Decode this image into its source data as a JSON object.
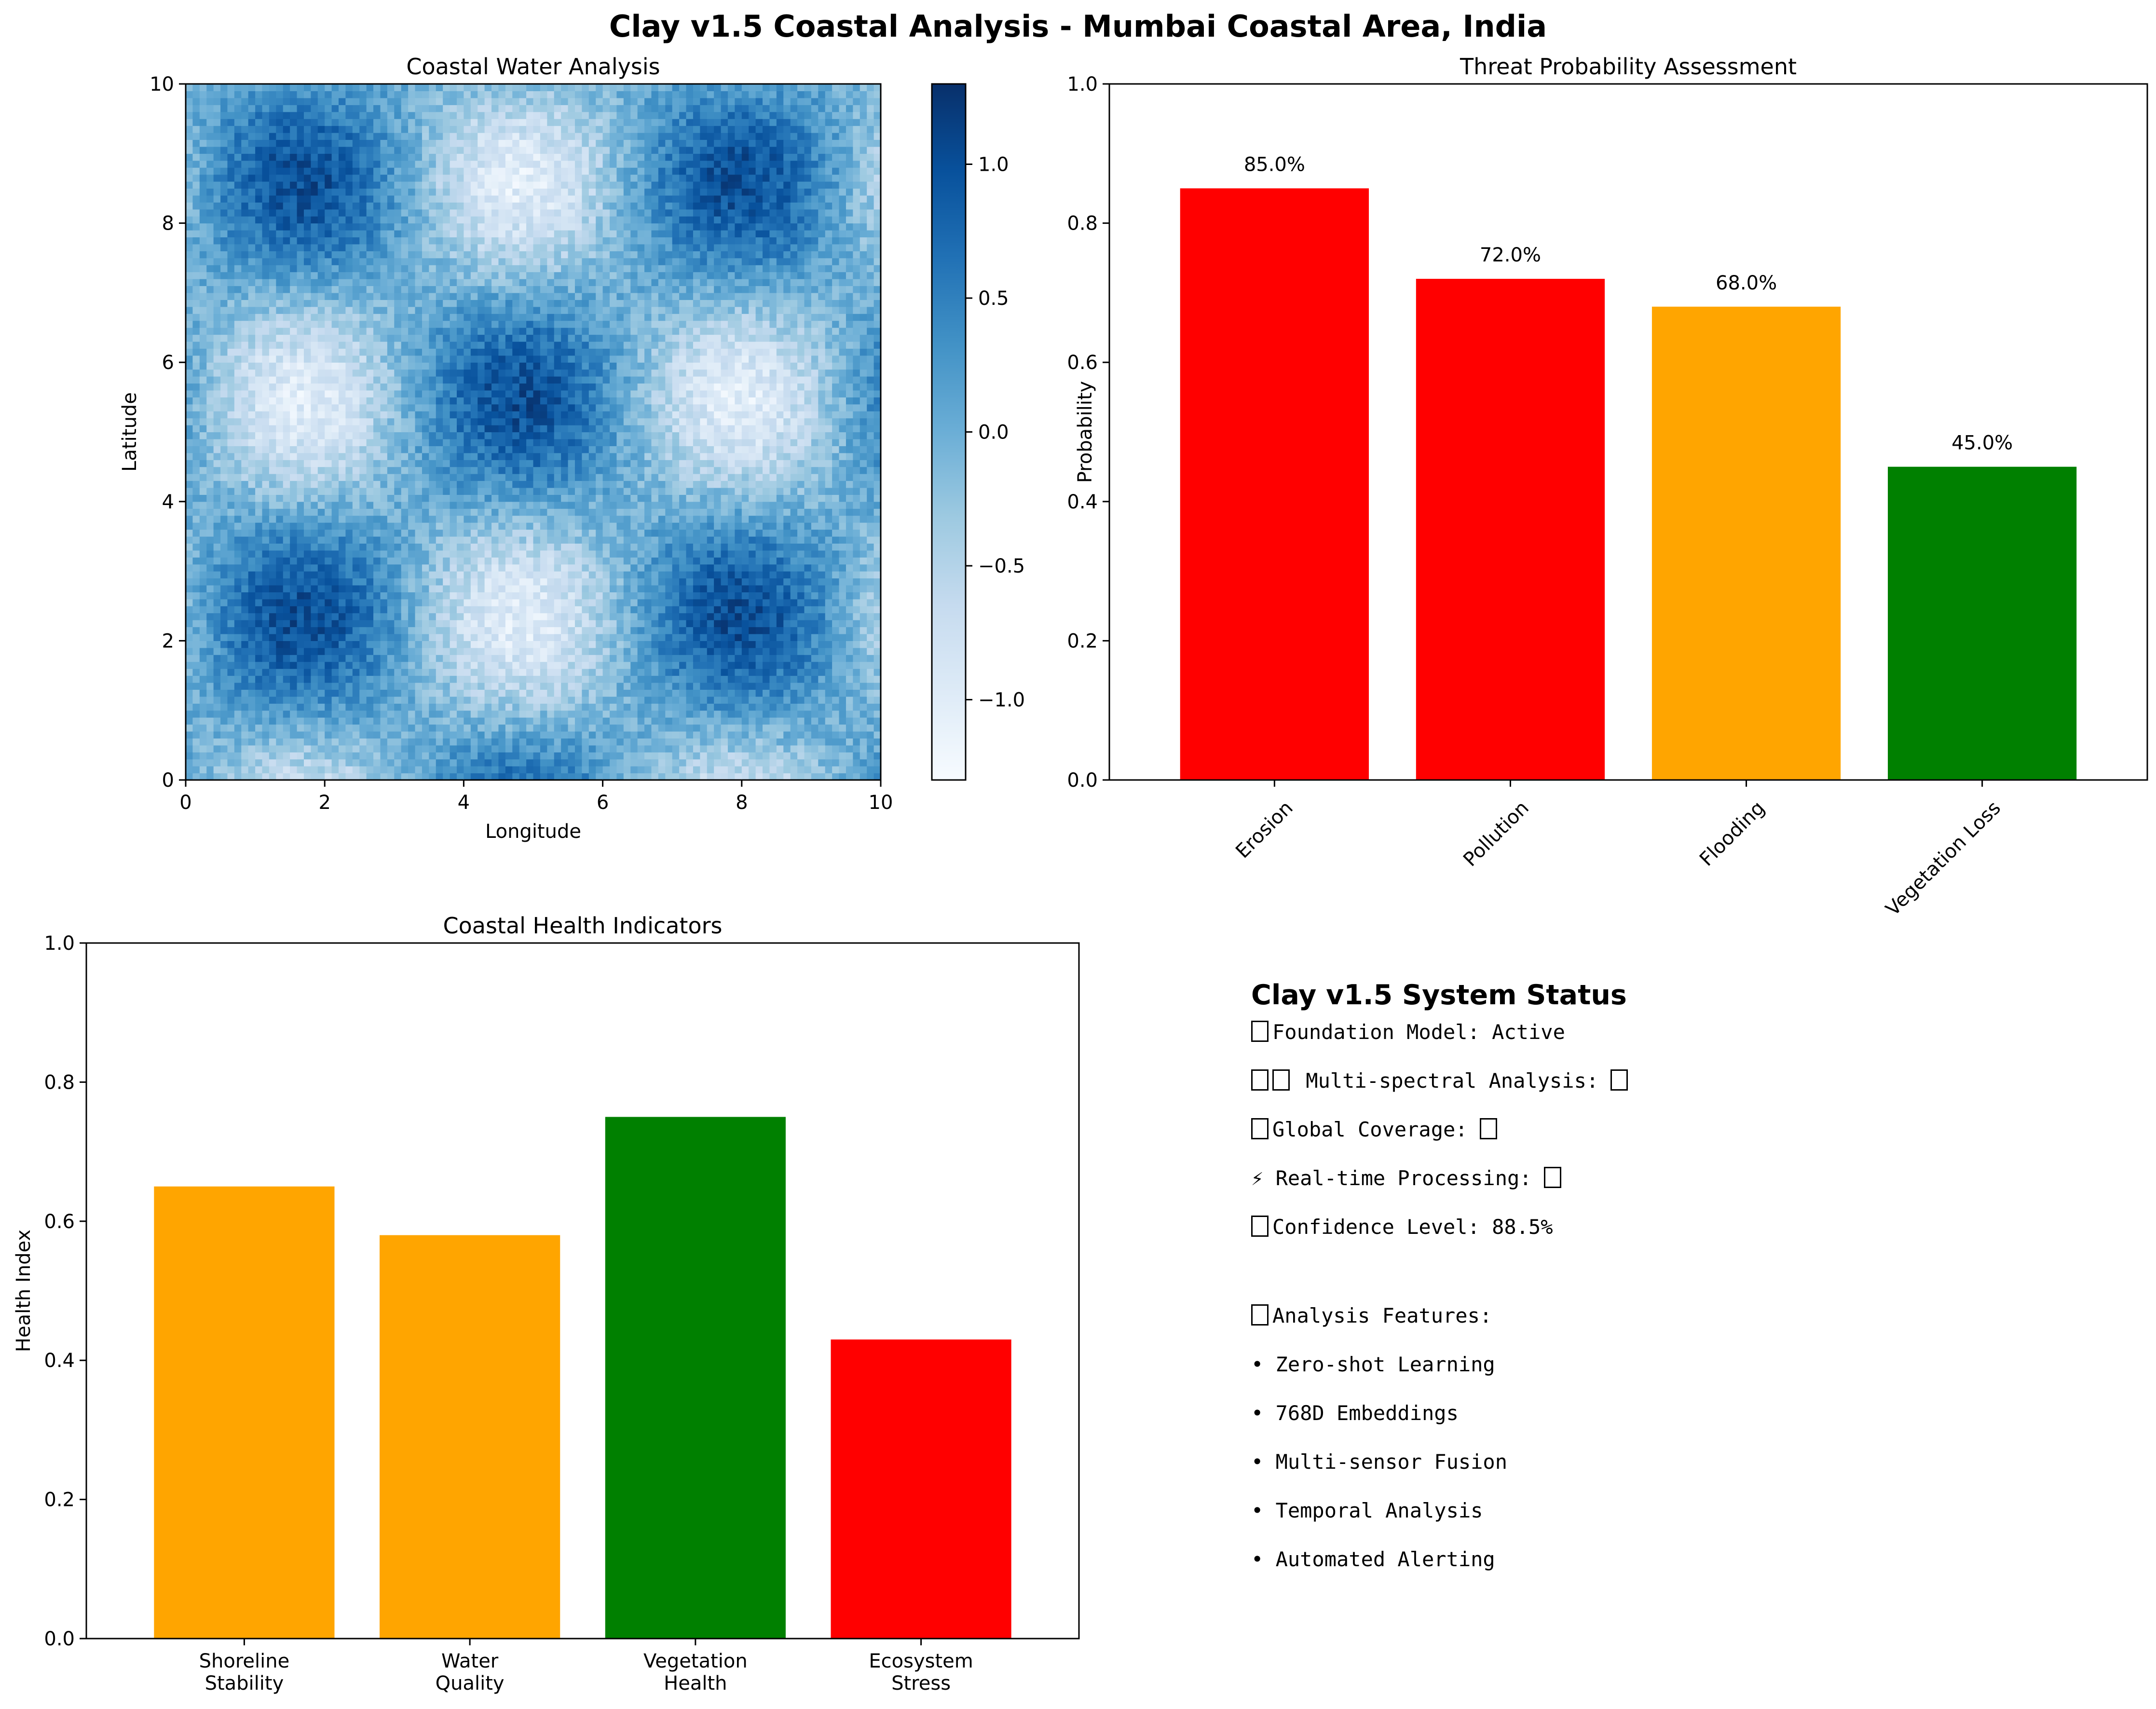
{
  "suptitle": "Clay v1.5 Coastal Analysis - Mumbai Coastal Area, India",
  "colors": {
    "red": "#ff0000",
    "orange": "#ffa500",
    "green": "#008000",
    "colormap": "Blues"
  },
  "chart_data": [
    {
      "type": "heatmap",
      "title": "Coastal Water Analysis",
      "xlabel": "Longitude",
      "ylabel": "Latitude",
      "xlim": [
        0,
        10
      ],
      "ylim": [
        0,
        10
      ],
      "xticks": [
        "0",
        "2",
        "4",
        "6",
        "8",
        "10"
      ],
      "yticks": [
        "0",
        "2",
        "4",
        "6",
        "8",
        "10"
      ],
      "colormap": "Blues",
      "colorbar_range": [
        -1.3,
        1.3
      ],
      "colorbar_ticks": [
        "−1.0",
        "−0.5",
        "0.0",
        "0.5",
        "1.0"
      ],
      "colorbar_tick_values": [
        -1.0,
        -0.5,
        0.0,
        0.5,
        1.0
      ],
      "grid": false
    },
    {
      "type": "bar",
      "title": "Threat Probability Assessment",
      "xlabel": "",
      "ylabel": "Probability",
      "categories": [
        "Erosion",
        "Pollution",
        "Flooding",
        "Vegetation Loss"
      ],
      "values": [
        0.85,
        0.72,
        0.68,
        0.45
      ],
      "data_labels": [
        "85.0%",
        "72.0%",
        "68.0%",
        "45.0%"
      ],
      "bar_colors": [
        "#ff0000",
        "#ff0000",
        "#ffa500",
        "#008000"
      ],
      "ylim": [
        0,
        1.0
      ],
      "yticks": [
        "0.0",
        "0.2",
        "0.4",
        "0.6",
        "0.8",
        "1.0"
      ],
      "ytick_values": [
        0,
        0.2,
        0.4,
        0.6,
        0.8,
        1.0
      ],
      "grid": false
    },
    {
      "type": "bar",
      "title": "Coastal Health Indicators",
      "xlabel": "",
      "ylabel": "Health Index",
      "categories": [
        "Shoreline\nStability",
        "Water\nQuality",
        "Vegetation\nHealth",
        "Ecosystem\nStress"
      ],
      "values": [
        0.65,
        0.58,
        0.75,
        0.43
      ],
      "bar_colors": [
        "#ffa500",
        "#ffa500",
        "#008000",
        "#ff0000"
      ],
      "ylim": [
        0,
        1.0
      ],
      "yticks": [
        "0.0",
        "0.2",
        "0.4",
        "0.6",
        "0.8",
        "1.0"
      ],
      "ytick_values": [
        0,
        0.2,
        0.4,
        0.6,
        0.8,
        1.0
      ],
      "grid": false
    }
  ],
  "status": {
    "title": "Clay v1.5 System Status",
    "lines": [
      "Foundation Model: Active",
      " Multi-spectral Analysis: ",
      "Global Coverage: ",
      "⚡ Real-time Processing: ",
      "Confidence Level: 88.5%",
      "",
      "Analysis Features:",
      "• Zero-shot Learning",
      "• 768D Embeddings",
      "• Multi-sensor Fusion",
      "• Temporal Analysis",
      "• Automated Alerting"
    ]
  }
}
